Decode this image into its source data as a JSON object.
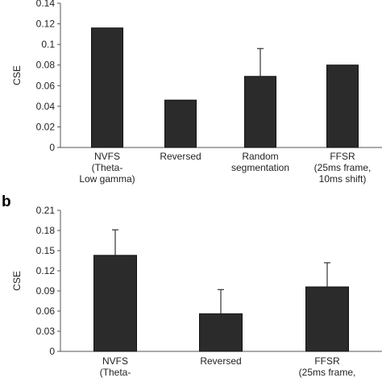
{
  "chart_data": [
    {
      "type": "bar",
      "panel_label": "",
      "ylabel": "CSE",
      "ylim": [
        0,
        0.14
      ],
      "yticks": [
        "0",
        "0.02",
        "0.04",
        "0.06",
        "0.08",
        "0.1",
        "0.12",
        "0.14"
      ],
      "categories": [
        [
          "NVFS",
          "(Theta-",
          "Low gamma)"
        ],
        [
          "Reversed"
        ],
        [
          "Random",
          "segmentation"
        ],
        [
          "FFSR",
          "(25ms frame,",
          "10ms shift)"
        ]
      ],
      "values": [
        0.116,
        0.046,
        0.069,
        0.08
      ],
      "errors": [
        null,
        null,
        0.027,
        null
      ],
      "bar_color": "#2b2b2b",
      "grid": false
    },
    {
      "type": "bar",
      "panel_label": "b",
      "ylabel": "CSE",
      "ylim": [
        0,
        0.21
      ],
      "yticks": [
        "0",
        "0.03",
        "0.06",
        "0.09",
        "0.12",
        "0.15",
        "0.18",
        "0.21"
      ],
      "categories": [
        [
          "NVFS",
          "(Theta-"
        ],
        [
          "Reversed"
        ],
        [
          "FFSR",
          "(25ms frame,"
        ]
      ],
      "values": [
        0.143,
        0.056,
        0.096
      ],
      "errors": [
        0.038,
        0.036,
        0.036
      ],
      "bar_color": "#2b2b2b",
      "grid": false
    }
  ]
}
